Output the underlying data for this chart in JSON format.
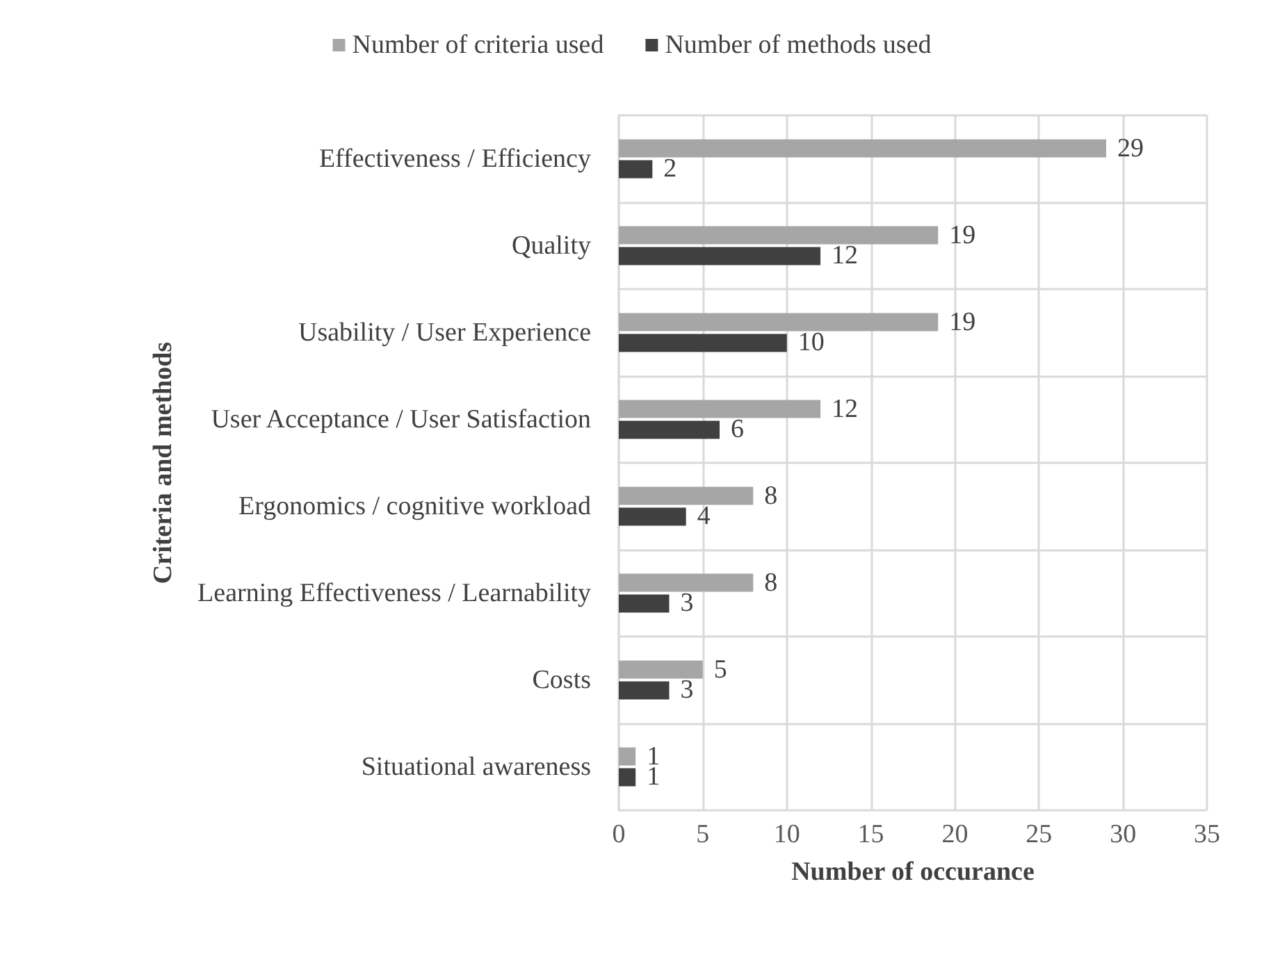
{
  "chart_data": {
    "type": "bar",
    "orientation": "horizontal",
    "categories": [
      "Effectiveness / Efficiency",
      "Quality",
      "Usability / User Experience",
      "User Acceptance / User Satisfaction",
      "Ergonomics / cognitive workload",
      "Learning Effectiveness / Learnability",
      "Costs",
      "Situational awareness"
    ],
    "series": [
      {
        "name": "Number of criteria used",
        "color": "#a6a6a6",
        "values": [
          29,
          19,
          19,
          12,
          8,
          8,
          5,
          1
        ]
      },
      {
        "name": "Number of methods used",
        "color": "#404040",
        "values": [
          2,
          12,
          10,
          6,
          4,
          3,
          3,
          1
        ]
      }
    ],
    "xlim": [
      0,
      35
    ],
    "xticks": [
      0,
      5,
      10,
      15,
      20,
      25,
      30,
      35
    ],
    "xlabel": "Number of occurance",
    "ylabel": "Criteria and methods",
    "data_labels": true,
    "grid": true,
    "legend": "top"
  }
}
